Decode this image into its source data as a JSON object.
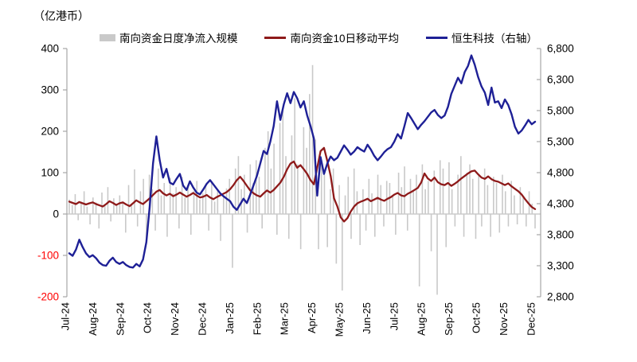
{
  "unit_label": "（亿港币）",
  "legend": [
    {
      "label": "南向资金日度净流入规模",
      "type": "bar",
      "color": "#C9C9C9"
    },
    {
      "label": "南向资金10日移动平均",
      "type": "line",
      "color": "#8E1A1A"
    },
    {
      "label": "恒生科技（右轴）",
      "type": "line",
      "color": "#1E2096"
    }
  ],
  "chart_data": {
    "type": "bar+line combo, dual axis",
    "title": "（亿港币）",
    "x_tick_labels": [
      "Jul-24",
      "Aug-24",
      "Sep-24",
      "Oct-24",
      "Nov-24",
      "Dec-24",
      "Jan-25",
      "Feb-25",
      "Mar-25",
      "Apr-25",
      "May-25",
      "Jun-25",
      "Jul-25",
      "Aug-25",
      "Sep-25",
      "Oct-25",
      "Nov-25",
      "Dec-25"
    ],
    "left_axis": {
      "ticks": [
        400,
        300,
        200,
        100,
        0,
        -100,
        -200
      ],
      "range": [
        -200,
        400
      ],
      "tick_color": "#000000",
      "negative_tick_color": "#FF0000"
    },
    "right_axis": {
      "ticks": [
        6800,
        6300,
        5800,
        5300,
        4800,
        4300,
        3800,
        3300,
        2800
      ],
      "range": [
        2800,
        6800
      ],
      "tick_color": "#000000",
      "format": "thousands-comma"
    },
    "grid": "zero-line-only",
    "legend_position": "top-center",
    "axis_color": "#A6A6A6",
    "zero_line_color": "#B3B3B3",
    "series": [
      {
        "name": "南向资金日度净流入规模",
        "type": "bar",
        "axis": "left",
        "color": "#C9C9C9",
        "values": [
          35,
          22,
          48,
          -15,
          30,
          55,
          18,
          -25,
          40,
          28,
          -35,
          52,
          20,
          65,
          -18,
          38,
          25,
          45,
          30,
          -45,
          70,
          25,
          108,
          -30,
          55,
          85,
          -60,
          95,
          60,
          -40,
          110,
          45,
          75,
          -55,
          88,
          50,
          65,
          -35,
          90,
          40,
          70,
          -50,
          55,
          80,
          35,
          50,
          68,
          -40,
          75,
          30,
          58,
          -65,
          45,
          62,
          85,
          -130,
          110,
          140,
          60,
          95,
          -45,
          120,
          75,
          130,
          90,
          -35,
          160,
          200,
          110,
          170,
          -50,
          220,
          250,
          140,
          -60,
          190,
          280,
          120,
          -85,
          210,
          160,
          290,
          360,
          180,
          -85,
          130,
          95,
          -80,
          60,
          110,
          -120,
          70,
          -185,
          45,
          90,
          -60,
          110,
          55,
          -75,
          60,
          -40,
          85,
          50,
          -55,
          95,
          70,
          -30,
          80,
          75,
          45,
          -50,
          100,
          65,
          115,
          -40,
          85,
          55,
          95,
          -175,
          120,
          60,
          80,
          -90,
          105,
          -195,
          130,
          110,
          -80,
          125,
          60,
          -30,
          95,
          140,
          -55,
          100,
          120,
          85,
          -60,
          95,
          -30,
          110,
          70,
          -55,
          90,
          75,
          -45,
          95,
          55,
          -30,
          80,
          45,
          -25,
          65,
          40,
          -30,
          55,
          25,
          -35
        ]
      },
      {
        "name": "南向资金10日移动平均",
        "type": "line",
        "axis": "left",
        "color": "#8E1A1A",
        "values": [
          30,
          27,
          24,
          29,
          26,
          23,
          26,
          28,
          24,
          21,
          18,
          24,
          31,
          27,
          22,
          26,
          28,
          23,
          19,
          26,
          33,
          28,
          24,
          31,
          38,
          46,
          54,
          58,
          50,
          45,
          49,
          43,
          47,
          52,
          47,
          42,
          46,
          51,
          45,
          40,
          42,
          46,
          40,
          36,
          41,
          45,
          49,
          53,
          60,
          70,
          82,
          90,
          80,
          68,
          57,
          50,
          45,
          42,
          50,
          57,
          52,
          58,
          67,
          76,
          90,
          108,
          122,
          127,
          112,
          118,
          108,
          97,
          82,
          72,
          112,
          152,
          160,
          128,
          92,
          38,
          18,
          -8,
          -18,
          -10,
          6,
          18,
          26,
          30,
          33,
          37,
          31,
          35,
          39,
          35,
          32,
          37,
          41,
          47,
          51,
          45,
          43,
          49,
          53,
          58,
          63,
          76,
          98,
          86,
          80,
          88,
          77,
          72,
          70,
          75,
          68,
          73,
          79,
          86,
          92,
          98,
          103,
          105,
          96,
          88,
          85,
          91,
          84,
          80,
          78,
          74,
          70,
          74,
          67,
          61,
          55,
          47,
          36,
          26,
          17,
          12
        ]
      },
      {
        "name": "恒生科技（右轴）",
        "type": "line",
        "axis": "right",
        "color": "#1E2096",
        "values": [
          3500,
          3460,
          3560,
          3720,
          3600,
          3500,
          3440,
          3470,
          3420,
          3350,
          3310,
          3300,
          3380,
          3430,
          3360,
          3330,
          3360,
          3310,
          3280,
          3270,
          3330,
          3290,
          3400,
          3680,
          4250,
          4950,
          5385,
          5000,
          4720,
          4860,
          4640,
          4610,
          4700,
          4780,
          4590,
          4520,
          4660,
          4560,
          4480,
          4450,
          4530,
          4620,
          4680,
          4610,
          4540,
          4470,
          4420,
          4380,
          4340,
          4250,
          4200,
          4290,
          4380,
          4310,
          4450,
          4600,
          4750,
          4950,
          5150,
          5100,
          5300,
          5550,
          5950,
          5650,
          5900,
          6080,
          5920,
          6100,
          6000,
          5850,
          5950,
          5720,
          5550,
          5350,
          4430,
          5050,
          4780,
          4950,
          5060,
          5000,
          5040,
          5140,
          5240,
          5170,
          5090,
          5140,
          5210,
          5170,
          5140,
          5250,
          5170,
          5070,
          5000,
          5060,
          5130,
          5180,
          5210,
          5300,
          5420,
          5350,
          5550,
          5760,
          5680,
          5590,
          5500,
          5570,
          5630,
          5700,
          5770,
          5810,
          5730,
          5680,
          5720,
          5860,
          6070,
          6200,
          6330,
          6240,
          6420,
          6520,
          6690,
          6540,
          6340,
          6190,
          6090,
          5890,
          6170,
          5930,
          5950,
          5840,
          5980,
          5890,
          5740,
          5540,
          5430,
          5480,
          5560,
          5650,
          5580,
          5620
        ]
      }
    ]
  }
}
